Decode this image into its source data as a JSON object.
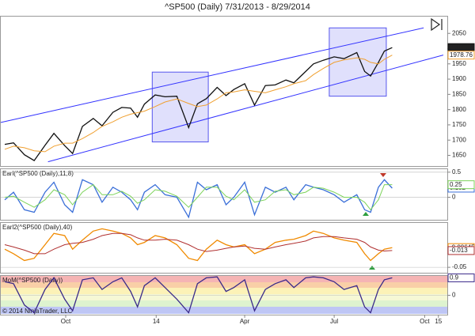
{
  "chart_data": [
    {
      "type": "line",
      "title": "^SP500 (Daily)  7/31/2013 - 8/29/2014",
      "x": [
        "2013-07-31",
        "2013-08-09",
        "2013-08-20",
        "2013-08-30",
        "2013-09-10",
        "2013-09-19",
        "2013-09-30",
        "2013-10-08",
        "2013-10-18",
        "2013-10-29",
        "2013-11-07",
        "2013-11-18",
        "2013-11-27",
        "2013-12-06",
        "2013-12-13",
        "2013-12-20",
        "2013-12-31",
        "2014-01-10",
        "2014-01-22",
        "2014-02-03",
        "2014-02-12",
        "2014-02-21",
        "2014-03-04",
        "2014-03-13",
        "2014-03-21",
        "2014-04-01",
        "2014-04-11",
        "2014-04-22",
        "2014-05-02",
        "2014-05-13",
        "2014-05-21",
        "2014-06-02",
        "2014-06-10",
        "2014-06-20",
        "2014-07-01",
        "2014-07-11",
        "2014-07-24",
        "2014-08-01",
        "2014-08-07",
        "2014-08-15",
        "2014-08-21",
        "2014-08-29"
      ],
      "xlim": [
        "2013-07-27",
        "2014-10-20"
      ],
      "xticks": [
        {
          "value": "2013-10-01",
          "label": "Oct"
        },
        {
          "value": "2014-01-01",
          "label": "14"
        },
        {
          "value": "2014-04-01",
          "label": "Apr"
        },
        {
          "value": "2014-07-01",
          "label": "Jul"
        },
        {
          "value": "2014-10-01",
          "label": "Oct"
        },
        {
          "value": "2014-10-15",
          "label": "15"
        }
      ],
      "ylim": [
        1615,
        2105
      ],
      "yticks": [
        1650,
        1700,
        1750,
        1800,
        1850,
        1900,
        1950,
        2000,
        2050
      ],
      "series": [
        {
          "color": "#111111",
          "values": [
            1686,
            1691,
            1652,
            1633,
            1683,
            1722,
            1682,
            1656,
            1745,
            1771,
            1747,
            1791,
            1807,
            1805,
            1775,
            1818,
            1848,
            1842,
            1844,
            1741,
            1819,
            1836,
            1873,
            1846,
            1866,
            1885,
            1815,
            1879,
            1881,
            1897,
            1888,
            1925,
            1950,
            1962,
            1973,
            1967,
            1987,
            1925,
            1910,
            1955,
            1992,
            2003.37
          ]
        },
        {
          "color": "#f0a030",
          "values": [
            1670,
            1680,
            1675,
            1665,
            1662,
            1680,
            1690,
            1690,
            1705,
            1725,
            1745,
            1760,
            1775,
            1785,
            1790,
            1795,
            1810,
            1825,
            1835,
            1820,
            1810,
            1815,
            1835,
            1855,
            1858,
            1865,
            1860,
            1855,
            1865,
            1875,
            1885,
            1895,
            1915,
            1935,
            1955,
            1963,
            1970,
            1965,
            1955,
            1950,
            1965,
            1978.76
          ]
        }
      ],
      "lines": [
        {
          "color": "#3333ff",
          "x": [
            "2013-07-27",
            "2014-09-30"
          ],
          "y": [
            1758,
            2068
          ]
        },
        {
          "color": "#3333ff",
          "x": [
            "2013-09-13",
            "2014-10-20"
          ],
          "y": [
            1629,
            1979
          ]
        }
      ],
      "boxes": [
        {
          "color": "#5555ee",
          "x": [
            "2013-12-28",
            "2014-02-23"
          ],
          "y": [
            1694,
            1923
          ]
        },
        {
          "color": "#5555ee",
          "x": [
            "2014-06-26",
            "2014-08-23"
          ],
          "y": [
            1844,
            2068
          ]
        }
      ]
    },
    {
      "type": "line",
      "title": "Earl(^SP500 (Daily),11,8)",
      "ylim": [
        -0.45,
        0.56
      ],
      "yticks": [
        0.5,
        0
      ],
      "series": [
        {
          "color": "#3a6fd8",
          "values": [
            -0.05,
            0.1,
            -0.25,
            -0.3,
            0.1,
            0.3,
            -0.15,
            -0.3,
            0.35,
            0.25,
            -0.1,
            0.2,
            0.1,
            -0.05,
            -0.25,
            0.1,
            0.25,
            0.05,
            0.0,
            -0.4,
            0.3,
            0.15,
            0.25,
            -0.15,
            0.0,
            0.3,
            -0.35,
            0.2,
            0.1,
            0.2,
            -0.05,
            0.25,
            0.2,
            0.15,
            0.05,
            -0.1,
            0.05,
            -0.25,
            -0.3,
            0.2,
            0.35,
            0.182
          ]
        },
        {
          "color": "#7cd35a",
          "values": [
            0,
            0.02,
            -0.1,
            -0.2,
            -0.05,
            0.15,
            0.05,
            -0.15,
            0.1,
            0.25,
            0.05,
            0.05,
            0.12,
            0.02,
            -0.12,
            -0.05,
            0.15,
            0.12,
            0.02,
            -0.2,
            0.0,
            0.2,
            0.2,
            0.02,
            -0.05,
            0.15,
            -0.1,
            -0.05,
            0.12,
            0.15,
            0.05,
            0.1,
            0.2,
            0.18,
            0.1,
            0.0,
            0.0,
            -0.1,
            -0.25,
            -0.05,
            0.25,
            0.25
          ]
        }
      ]
    },
    {
      "type": "line",
      "title": "Earl2(^SP500 (Daily),40)",
      "ylim": [
        -0.062,
        0.048
      ],
      "yticks": [
        -0.05
      ],
      "series": [
        {
          "color": "#f08a00",
          "values": [
            -0.01,
            -0.02,
            -0.035,
            -0.03,
            0.0,
            0.025,
            0.02,
            -0.01,
            0.01,
            0.03,
            0.035,
            0.03,
            0.025,
            0.015,
            0.0,
            0.005,
            0.02,
            0.015,
            0.0,
            -0.03,
            -0.035,
            -0.01,
            0.01,
            0.0,
            -0.005,
            0.0,
            -0.02,
            -0.01,
            0.005,
            0.01,
            0.012,
            0.02,
            0.03,
            0.025,
            0.015,
            0.01,
            0.005,
            -0.02,
            -0.035,
            -0.02,
            -0.01,
            -0.00645
          ]
        },
        {
          "color": "#b03030",
          "values": [
            0,
            -0.005,
            -0.012,
            -0.02,
            -0.02,
            -0.01,
            0.0,
            0.003,
            0.005,
            0.012,
            0.02,
            0.025,
            0.025,
            0.022,
            0.015,
            0.01,
            0.01,
            0.012,
            0.01,
            0.0,
            -0.01,
            -0.015,
            -0.012,
            -0.008,
            -0.005,
            -0.003,
            -0.008,
            -0.01,
            -0.005,
            0.0,
            0.003,
            0.008,
            0.015,
            0.018,
            0.018,
            0.015,
            0.012,
            0.005,
            -0.005,
            -0.012,
            -0.014,
            -0.013
          ]
        }
      ]
    },
    {
      "type": "line",
      "title": "MoM(^SP500 (Daily))",
      "ylim": [
        -1,
        1
      ],
      "yticks": [
        0
      ],
      "series": [
        {
          "color": "#3a2a8a",
          "values": [
            0.7,
            0.6,
            -0.5,
            -0.9,
            0.3,
            0.9,
            -0.2,
            -0.8,
            0.8,
            0.9,
            0.3,
            0.7,
            0.9,
            0.2,
            -0.6,
            0.5,
            0.9,
            0.4,
            -0.2,
            -0.9,
            0.6,
            0.9,
            0.95,
            0.2,
            0.4,
            0.8,
            -0.8,
            0.3,
            0.6,
            0.8,
            0.4,
            0.9,
            0.95,
            0.9,
            0.7,
            0.3,
            0.5,
            -0.6,
            -0.9,
            0.3,
            0.8,
            0.9
          ]
        }
      ]
    }
  ],
  "footer": "© 2014 NinjaTrader, LLC"
}
